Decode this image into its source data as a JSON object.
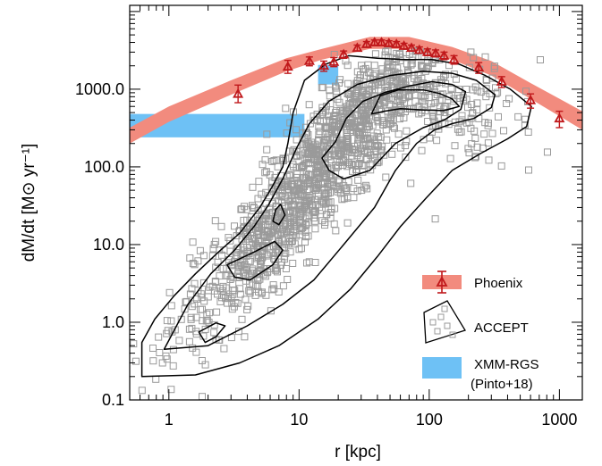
{
  "chart_data": {
    "type": "scatter",
    "title": "",
    "xlabel": "r [kpc]",
    "ylabel": "dM/dt [M⊙ yr⁻¹]",
    "xscale": "log",
    "yscale": "log",
    "xlim": [
      0.5,
      1500
    ],
    "ylim": [
      0.1,
      12000
    ],
    "x_ticks": [
      1,
      10,
      100,
      1000
    ],
    "x_tick_labels": [
      "1",
      "10",
      "100",
      "1000"
    ],
    "y_ticks": [
      0.1,
      1.0,
      10.0,
      100.0,
      1000.0
    ],
    "y_tick_labels": [
      "0.1",
      "1.0",
      "10.0",
      "100.0",
      "1000.0"
    ],
    "grid": false,
    "legend_position": "bottom-right",
    "colors": {
      "phoenix_band": "#f28b7e",
      "phoenix_marker": "#c0181b",
      "accept_marker": "#9a9a9a",
      "contour": "#000000",
      "xmm_band": "#6ec1f5"
    },
    "series": [
      {
        "name": "Phoenix",
        "kind": "points_with_errorbars_and_band",
        "points": [
          {
            "x": 3.4,
            "y": 870,
            "yerr_lo": 200,
            "yerr_hi": 260
          },
          {
            "x": 8.2,
            "y": 1950,
            "yerr_lo": 350,
            "yerr_hi": 400
          },
          {
            "x": 12,
            "y": 2300,
            "yerr_lo": 300,
            "yerr_hi": 300
          },
          {
            "x": 15.5,
            "y": 2000,
            "yerr_lo": 300,
            "yerr_hi": 300
          },
          {
            "x": 18.5,
            "y": 2250,
            "yerr_lo": 300,
            "yerr_hi": 300
          },
          {
            "x": 22,
            "y": 2800,
            "yerr_lo": 300,
            "yerr_hi": 300
          },
          {
            "x": 28,
            "y": 3400,
            "yerr_lo": 300,
            "yerr_hi": 300
          },
          {
            "x": 33,
            "y": 3800,
            "yerr_lo": 300,
            "yerr_hi": 300
          },
          {
            "x": 38,
            "y": 4000,
            "yerr_lo": 300,
            "yerr_hi": 300
          },
          {
            "x": 43,
            "y": 4000,
            "yerr_lo": 300,
            "yerr_hi": 300
          },
          {
            "x": 49,
            "y": 3900,
            "yerr_lo": 300,
            "yerr_hi": 300
          },
          {
            "x": 56,
            "y": 3800,
            "yerr_lo": 300,
            "yerr_hi": 300
          },
          {
            "x": 64,
            "y": 3600,
            "yerr_lo": 300,
            "yerr_hi": 300
          },
          {
            "x": 73,
            "y": 3400,
            "yerr_lo": 300,
            "yerr_hi": 300
          },
          {
            "x": 84,
            "y": 3200,
            "yerr_lo": 300,
            "yerr_hi": 300
          },
          {
            "x": 97,
            "y": 3000,
            "yerr_lo": 300,
            "yerr_hi": 300
          },
          {
            "x": 112,
            "y": 2900,
            "yerr_lo": 300,
            "yerr_hi": 300
          },
          {
            "x": 130,
            "y": 2700,
            "yerr_lo": 300,
            "yerr_hi": 300
          },
          {
            "x": 155,
            "y": 2400,
            "yerr_lo": 300,
            "yerr_hi": 300
          },
          {
            "x": 240,
            "y": 1900,
            "yerr_lo": 300,
            "yerr_hi": 300
          },
          {
            "x": 360,
            "y": 1250,
            "yerr_lo": 200,
            "yerr_hi": 200
          },
          {
            "x": 600,
            "y": 720,
            "yerr_lo": 150,
            "yerr_hi": 150
          },
          {
            "x": 1000,
            "y": 420,
            "yerr_lo": 100,
            "yerr_hi": 100
          }
        ],
        "band_upper": [
          {
            "x": 0.5,
            "y": 320
          },
          {
            "x": 1,
            "y": 600
          },
          {
            "x": 3,
            "y": 1300
          },
          {
            "x": 8,
            "y": 2500
          },
          {
            "x": 15,
            "y": 3300
          },
          {
            "x": 35,
            "y": 4700
          },
          {
            "x": 70,
            "y": 4700
          },
          {
            "x": 150,
            "y": 3500
          },
          {
            "x": 300,
            "y": 2300
          },
          {
            "x": 600,
            "y": 1200
          },
          {
            "x": 1500,
            "y": 520
          }
        ],
        "band_lower": [
          {
            "x": 0.5,
            "y": 200
          },
          {
            "x": 1,
            "y": 380
          },
          {
            "x": 3,
            "y": 850
          },
          {
            "x": 8,
            "y": 1700
          },
          {
            "x": 15,
            "y": 2400
          },
          {
            "x": 35,
            "y": 3300
          },
          {
            "x": 70,
            "y": 3300
          },
          {
            "x": 150,
            "y": 2400
          },
          {
            "x": 300,
            "y": 1500
          },
          {
            "x": 600,
            "y": 750
          },
          {
            "x": 1500,
            "y": 300
          }
        ]
      },
      {
        "name": "ACCEPT",
        "kind": "scatter_with_density_contours",
        "n_points": 1600,
        "contours": [
          [
            [
              0.62,
              0.2
            ],
            [
              0.62,
              0.55
            ],
            [
              0.78,
              1.1
            ],
            [
              1.1,
              2.2
            ],
            [
              1.6,
              4.2
            ],
            [
              2.4,
              8
            ],
            [
              3.5,
              14
            ],
            [
              5,
              30
            ],
            [
              6.2,
              55
            ],
            [
              7.5,
              100
            ],
            [
              8.2,
              200
            ],
            [
              9,
              500
            ],
            [
              11,
              1300
            ],
            [
              16,
              2100
            ],
            [
              24,
              2700
            ],
            [
              40,
              2500
            ],
            [
              65,
              2400
            ],
            [
              105,
              2400
            ],
            [
              170,
              2100
            ],
            [
              270,
              1500
            ],
            [
              420,
              1000
            ],
            [
              610,
              600
            ],
            [
              560,
              330
            ],
            [
              400,
              230
            ],
            [
              250,
              150
            ],
            [
              150,
              90
            ],
            [
              95,
              40
            ],
            [
              60,
              17
            ],
            [
              40,
              7
            ],
            [
              25,
              2.7
            ],
            [
              14,
              1.1
            ],
            [
              7,
              0.5
            ],
            [
              3.5,
              0.3
            ],
            [
              1.6,
              0.21
            ]
          ],
          [
            [
              0.92,
              0.45
            ],
            [
              1.4,
              1.7
            ],
            [
              2.1,
              4.2
            ],
            [
              3.2,
              8.5
            ],
            [
              4.5,
              17
            ],
            [
              5.8,
              32
            ],
            [
              7.5,
              70
            ],
            [
              9.5,
              170
            ],
            [
              12,
              360
            ],
            [
              17,
              700
            ],
            [
              28,
              1150
            ],
            [
              50,
              1500
            ],
            [
              90,
              1700
            ],
            [
              150,
              1600
            ],
            [
              230,
              1300
            ],
            [
              320,
              850
            ],
            [
              300,
              580
            ],
            [
              220,
              420
            ],
            [
              150,
              360
            ],
            [
              110,
              300
            ],
            [
              80,
              200
            ],
            [
              55,
              90
            ],
            [
              38,
              30
            ],
            [
              22,
              10
            ],
            [
              13,
              3.5
            ],
            [
              7.5,
              1.7
            ],
            [
              4,
              0.9
            ],
            [
              2,
              0.5
            ]
          ],
          [
            [
              1.9,
              0.55
            ],
            [
              2.3,
              0.65
            ],
            [
              2.7,
              0.9
            ],
            [
              2.3,
              0.98
            ],
            [
              1.7,
              0.75
            ]
          ],
          [
            [
              2.8,
              5.5
            ],
            [
              4.5,
              8
            ],
            [
              6.5,
              11
            ],
            [
              7.5,
              8.5
            ],
            [
              6.3,
              5.5
            ],
            [
              4.2,
              3.5
            ],
            [
              3.2,
              3.8
            ]
          ],
          [
            [
              6.3,
              20
            ],
            [
              6.6,
              28
            ],
            [
              7.2,
              33
            ],
            [
              7.8,
              24
            ],
            [
              7,
              18
            ]
          ],
          [
            [
              15,
              130
            ],
            [
              19,
              210
            ],
            [
              23,
              420
            ],
            [
              31,
              700
            ],
            [
              45,
              900
            ],
            [
              70,
              1100
            ],
            [
              105,
              1250
            ],
            [
              150,
              1150
            ],
            [
              190,
              930
            ],
            [
              175,
              550
            ],
            [
              130,
              400
            ],
            [
              90,
              320
            ],
            [
              55,
              200
            ],
            [
              35,
              90
            ],
            [
              22,
              70
            ],
            [
              17,
              90
            ]
          ],
          [
            [
              36,
              480
            ],
            [
              42,
              820
            ],
            [
              58,
              980
            ],
            [
              90,
              980
            ],
            [
              120,
              880
            ],
            [
              150,
              750
            ],
            [
              170,
              600
            ],
            [
              130,
              530
            ],
            [
              90,
              540
            ],
            [
              60,
              560
            ],
            [
              45,
              520
            ]
          ]
        ]
      },
      {
        "name": "XMM-RGS",
        "sub_label": "(Pinto+18)",
        "kind": "band",
        "x_range": [
          0.5,
          11
        ],
        "y_range": [
          240,
          480
        ],
        "extra_box": {
          "x_range": [
            14,
            20
          ],
          "y_range": [
            1150,
            2050
          ]
        }
      }
    ],
    "legend": [
      {
        "label": "Phoenix",
        "symbol": "band-with-triangle"
      },
      {
        "label": "ACCEPT",
        "symbol": "contour-with-squares"
      },
      {
        "label": "XMM-RGS",
        "label2": "(Pinto+18)",
        "symbol": "blue-band"
      }
    ]
  }
}
